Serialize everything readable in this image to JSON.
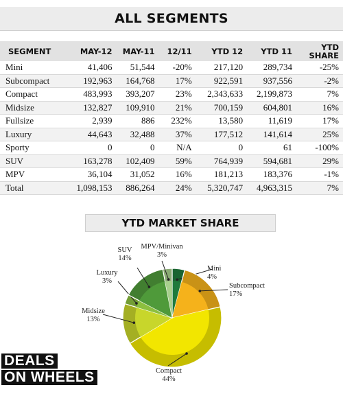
{
  "header": {
    "title": "ALL SEGMENTS"
  },
  "table": {
    "columns": [
      "SEGMENT",
      "MAY-12",
      "MAY-11",
      "12/11",
      "YTD 12",
      "YTD 11",
      "YTD SHARE"
    ],
    "rows": [
      [
        "Mini",
        "41,406",
        "51,544",
        "-20%",
        "217,120",
        "289,734",
        "-25%"
      ],
      [
        "Subcompact",
        "192,963",
        "164,768",
        "17%",
        "922,591",
        "937,556",
        "-2%"
      ],
      [
        "Compact",
        "483,993",
        "393,207",
        "23%",
        "2,343,633",
        "2,199,873",
        "7%"
      ],
      [
        "Midsize",
        "132,827",
        "109,910",
        "21%",
        "700,159",
        "604,801",
        "16%"
      ],
      [
        "Fullsize",
        "2,939",
        "886",
        "232%",
        "13,580",
        "11,619",
        "17%"
      ],
      [
        "Luxury",
        "44,643",
        "32,488",
        "37%",
        "177,512",
        "141,614",
        "25%"
      ],
      [
        "Sporty",
        "0",
        "0",
        "N/A",
        "0",
        "61",
        "-100%"
      ],
      [
        "SUV",
        "163,278",
        "102,409",
        "59%",
        "764,939",
        "594,681",
        "29%"
      ],
      [
        "MPV",
        "36,104",
        "31,052",
        "16%",
        "181,213",
        "183,376",
        "-1%"
      ],
      [
        "Total",
        "1,098,153",
        "886,264",
        "24%",
        "5,320,747",
        "4,963,315",
        "7%"
      ]
    ]
  },
  "chart_data": {
    "type": "pie",
    "title": "YTD MARKET SHARE",
    "slices": [
      {
        "name": "Mini",
        "value": 4,
        "label": "4%",
        "color": "#1f7a3c"
      },
      {
        "name": "Subcompact",
        "value": 17,
        "label": "17%",
        "color": "#f5b21b"
      },
      {
        "name": "Compact",
        "value": 44,
        "label": "44%",
        "color": "#f2e600"
      },
      {
        "name": "Midsize",
        "value": 13,
        "label": "13%",
        "color": "#c8d62b"
      },
      {
        "name": "Luxury",
        "value": 3,
        "label": "3%",
        "color": "#8cbf3f"
      },
      {
        "name": "SUV",
        "value": 14,
        "label": "14%",
        "color": "#4f9a3a"
      },
      {
        "name": "MPV/Minivan",
        "value": 3,
        "label": "3%",
        "color": "#a8d08d"
      }
    ]
  },
  "logo": {
    "line1": "DEALS",
    "line2": "ON WHEELS"
  }
}
